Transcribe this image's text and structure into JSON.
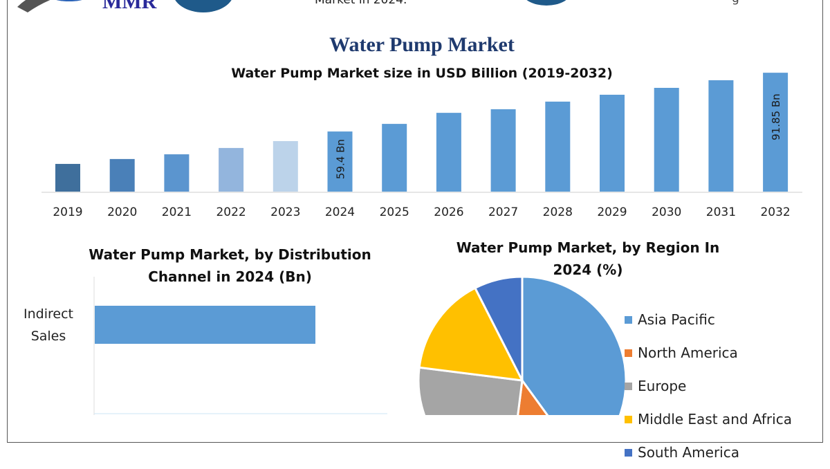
{
  "header": {
    "logo_text": "MMR",
    "top_text": "Market in 2024.",
    "top_text_right": "g"
  },
  "title": "Water Pump Market",
  "chart_data": [
    {
      "type": "bar",
      "title": "Water Pump Market size in USD Billion (2019-2032)",
      "categories": [
        "2019",
        "2020",
        "2021",
        "2022",
        "2023",
        "2024",
        "2025",
        "2026",
        "2027",
        "2028",
        "2029",
        "2030",
        "2031",
        "2032"
      ],
      "values": [
        41.5,
        44.2,
        46.8,
        50.3,
        54.1,
        59.4,
        63.6,
        69.7,
        71.7,
        75.9,
        79.7,
        83.5,
        87.7,
        91.85
      ],
      "data_labels": {
        "2024": "59.4 Bn",
        "2032": "91.85 Bn"
      },
      "colors": [
        "#3f6f9c",
        "#4a80b8",
        "#5b95cf",
        "#93b5dd",
        "#bcd3ea",
        "#5b9bd5",
        "#5b9bd5",
        "#5b9bd5",
        "#5b9bd5",
        "#5b9bd5",
        "#5b9bd5",
        "#5b9bd5",
        "#5b9bd5",
        "#5b9bd5"
      ],
      "grid": false
    },
    {
      "type": "bar",
      "orientation": "horizontal",
      "title": "Water Pump Market, by Distribution Channel in 2024 (Bn)",
      "categories": [
        "Indirect Sales"
      ],
      "color": "#5b9bd5"
    },
    {
      "type": "pie",
      "title": "Water Pump Market, by Region In 2024 (%)",
      "legend_position": "right",
      "series": [
        {
          "name": "Asia Pacific",
          "value": 40,
          "color": "#5b9bd5"
        },
        {
          "name": "North America",
          "value": 12,
          "color": "#ed7d31"
        },
        {
          "name": "Europe",
          "value": 25,
          "color": "#a5a5a5"
        },
        {
          "name": "Middle East and Africa",
          "value": 15.5,
          "color": "#ffc000"
        },
        {
          "name": "South America",
          "value": 7.5,
          "color": "#4472c4"
        }
      ]
    }
  ]
}
